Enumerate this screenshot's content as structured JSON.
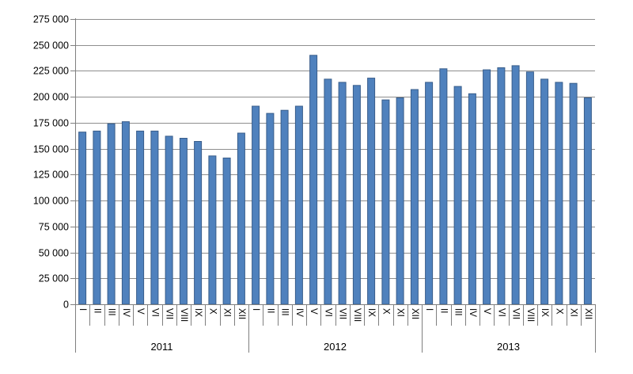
{
  "chart_data": {
    "type": "bar",
    "title": "",
    "grid": true,
    "legend_position": "none",
    "ylim": [
      0,
      275000
    ],
    "ytick_step": 25000,
    "ytick_labels": [
      "0",
      "25 000",
      "50 000",
      "75 000",
      "100 000",
      "125 000",
      "150 000",
      "175 000",
      "200 000",
      "225 000",
      "250 000",
      "275 000"
    ],
    "bar_color": "#4f81bd",
    "bar_border_color": "#385d8a",
    "gridline_color": "#8e8e8e",
    "axis_color": "#7f7f7f",
    "text_color": "#000000",
    "groups": [
      {
        "year": "2011",
        "months": [
          "I",
          "II",
          "III",
          "IV",
          "V",
          "VI",
          "VII",
          "VIII",
          "IX",
          "X",
          "XI",
          "XII"
        ],
        "values": [
          166000,
          167000,
          174000,
          176000,
          167000,
          167000,
          162000,
          160000,
          157000,
          143000,
          141000,
          165000
        ]
      },
      {
        "year": "2012",
        "months": [
          "I",
          "II",
          "III",
          "IV",
          "V",
          "VI",
          "VII",
          "VIII",
          "IX",
          "X",
          "XI",
          "XII"
        ],
        "values": [
          191000,
          184000,
          187000,
          191000,
          240000,
          217000,
          214000,
          211000,
          218000,
          197000,
          199000,
          207000
        ]
      },
      {
        "year": "2013",
        "months": [
          "I",
          "II",
          "III",
          "IV",
          "V",
          "VI",
          "VII",
          "VIII",
          "IX",
          "X",
          "XI",
          "XII"
        ],
        "values": [
          214000,
          227000,
          210000,
          203000,
          226000,
          228000,
          230000,
          224000,
          217000,
          214000,
          213000,
          199000
        ]
      }
    ]
  }
}
